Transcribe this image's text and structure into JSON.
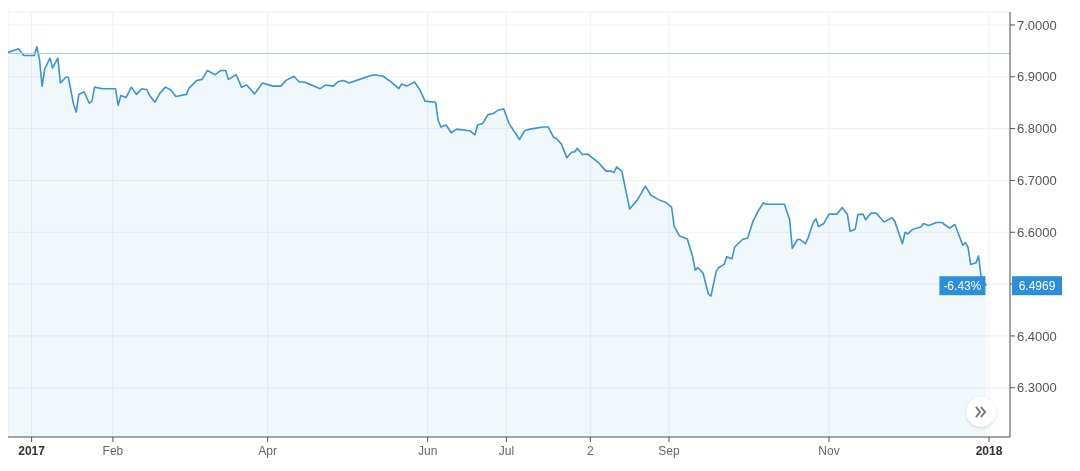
{
  "chart_data": {
    "type": "area",
    "color": "#3a95d4",
    "x": [
      "2016-12-23",
      "2016-12-27",
      "2016-12-29",
      "2017-01-02",
      "2017-01-03",
      "2017-01-04",
      "2017-01-05",
      "2017-01-06",
      "2017-01-08",
      "2017-01-09",
      "2017-01-11",
      "2017-01-12",
      "2017-01-14",
      "2017-01-15",
      "2017-01-17",
      "2017-01-18",
      "2017-01-19",
      "2017-01-21",
      "2017-01-23",
      "2017-01-24",
      "2017-01-25",
      "2017-01-28",
      "2017-02-02",
      "2017-02-03",
      "2017-02-04",
      "2017-02-06",
      "2017-02-08",
      "2017-02-10",
      "2017-02-12",
      "2017-02-14",
      "2017-02-15",
      "2017-02-17",
      "2017-02-19",
      "2017-02-21",
      "2017-02-23",
      "2017-02-25",
      "2017-03-01",
      "2017-03-02",
      "2017-03-05",
      "2017-03-07",
      "2017-03-09",
      "2017-03-12",
      "2017-03-14",
      "2017-03-16",
      "2017-03-17",
      "2017-03-20",
      "2017-03-22",
      "2017-03-24",
      "2017-03-27",
      "2017-03-30",
      "2017-04-03",
      "2017-04-06",
      "2017-04-08",
      "2017-04-11",
      "2017-04-13",
      "2017-04-15",
      "2017-04-21",
      "2017-04-23",
      "2017-04-26",
      "2017-04-28",
      "2017-04-30",
      "2017-05-02",
      "2017-05-06",
      "2017-05-10",
      "2017-05-12",
      "2017-05-15",
      "2017-05-18",
      "2017-05-21",
      "2017-05-22",
      "2017-05-24",
      "2017-05-27",
      "2017-05-29",
      "2017-05-31",
      "2017-06-04",
      "2017-06-05",
      "2017-06-06",
      "2017-06-08",
      "2017-06-10",
      "2017-06-12",
      "2017-06-17",
      "2017-06-19",
      "2017-06-20",
      "2017-06-22",
      "2017-06-24",
      "2017-06-26",
      "2017-06-28",
      "2017-06-30",
      "2017-07-02",
      "2017-07-06",
      "2017-07-08",
      "2017-07-10",
      "2017-07-15",
      "2017-07-17",
      "2017-07-19",
      "2017-07-20",
      "2017-07-22",
      "2017-07-24",
      "2017-07-26",
      "2017-07-27",
      "2017-07-28",
      "2017-07-30",
      "2017-08-01",
      "2017-08-05",
      "2017-08-08",
      "2017-08-10",
      "2017-08-11",
      "2017-08-12",
      "2017-08-14",
      "2017-08-17",
      "2017-08-20",
      "2017-08-23",
      "2017-08-25",
      "2017-08-28",
      "2017-08-31",
      "2017-09-02",
      "2017-09-03",
      "2017-09-05",
      "2017-09-08",
      "2017-09-10",
      "2017-09-11",
      "2017-09-12",
      "2017-09-14",
      "2017-09-16",
      "2017-09-17",
      "2017-09-19",
      "2017-09-20",
      "2017-09-22",
      "2017-09-23",
      "2017-09-25",
      "2017-09-26",
      "2017-09-29",
      "2017-10-01",
      "2017-10-03",
      "2017-10-05",
      "2017-10-07",
      "2017-10-08",
      "2017-10-15",
      "2017-10-17",
      "2017-10-18",
      "2017-10-20",
      "2017-10-21",
      "2017-10-23",
      "2017-10-24",
      "2017-10-26",
      "2017-10-27",
      "2017-10-28",
      "2017-10-30",
      "2017-11-01",
      "2017-11-02",
      "2017-11-04",
      "2017-11-06",
      "2017-11-08",
      "2017-11-09",
      "2017-11-11",
      "2017-11-12",
      "2017-11-14",
      "2017-11-15",
      "2017-11-17",
      "2017-11-19",
      "2017-11-22",
      "2017-11-25",
      "2017-11-26",
      "2017-11-29",
      "2017-11-30",
      "2017-12-01",
      "2017-12-03",
      "2017-12-06",
      "2017-12-07",
      "2017-12-09",
      "2017-12-12",
      "2017-12-14",
      "2017-12-15",
      "2017-12-17",
      "2017-12-19",
      "2017-12-22",
      "2017-12-23",
      "2017-12-24",
      "2017-12-25",
      "2017-12-27",
      "2017-12-28",
      "2017-12-29",
      "2017-12-31"
    ],
    "values": [
      6.947,
      6.954,
      6.941,
      6.941,
      6.958,
      6.934,
      6.882,
      6.915,
      6.936,
      6.917,
      6.936,
      6.888,
      6.899,
      6.899,
      6.847,
      6.832,
      6.866,
      6.871,
      6.849,
      6.853,
      6.88,
      6.877,
      6.877,
      6.845,
      6.864,
      6.86,
      6.88,
      6.866,
      6.877,
      6.875,
      6.864,
      6.851,
      6.869,
      6.88,
      6.875,
      6.862,
      6.866,
      6.878,
      6.893,
      6.895,
      6.912,
      6.904,
      6.912,
      6.912,
      6.895,
      6.904,
      6.88,
      6.884,
      6.867,
      6.888,
      6.882,
      6.882,
      6.893,
      6.901,
      6.89,
      6.89,
      6.877,
      6.884,
      6.882,
      6.891,
      6.893,
      6.888,
      6.895,
      6.902,
      6.904,
      6.901,
      6.89,
      6.877,
      6.886,
      6.882,
      6.89,
      6.875,
      6.853,
      6.851,
      6.816,
      6.803,
      6.807,
      6.792,
      6.799,
      6.796,
      6.788,
      6.807,
      6.81,
      6.827,
      6.829,
      6.836,
      6.838,
      6.81,
      6.779,
      6.796,
      6.799,
      6.803,
      6.803,
      6.783,
      6.781,
      6.77,
      6.744,
      6.755,
      6.755,
      6.762,
      6.75,
      6.751,
      6.735,
      6.718,
      6.718,
      6.715,
      6.726,
      6.718,
      6.645,
      6.663,
      6.689,
      6.672,
      6.663,
      6.657,
      6.648,
      6.611,
      6.593,
      6.587,
      6.553,
      6.527,
      6.532,
      6.521,
      6.481,
      6.477,
      6.525,
      6.532,
      6.538,
      6.553,
      6.549,
      6.571,
      6.586,
      6.589,
      6.621,
      6.641,
      6.657,
      6.654,
      6.654,
      6.624,
      6.569,
      6.586,
      6.586,
      6.578,
      6.589,
      6.619,
      6.626,
      6.611,
      6.617,
      6.635,
      6.635,
      6.635,
      6.648,
      6.635,
      6.602,
      6.606,
      6.634,
      6.635,
      6.624,
      6.637,
      6.637,
      6.62,
      6.628,
      6.622,
      6.578,
      6.6,
      6.597,
      6.606,
      6.61,
      6.617,
      6.613,
      6.619,
      6.619,
      6.615,
      6.608,
      6.615,
      6.575,
      6.58,
      6.571,
      6.538,
      6.541,
      6.554,
      6.514,
      6.4969
    ],
    "xlim": [
      "2016-12-23",
      "2018-01-09"
    ],
    "xticks": [
      {
        "value": "2017-01-01",
        "label": "2017"
      },
      {
        "value": "2017-02-01",
        "label": "Feb"
      },
      {
        "value": "2017-04-01",
        "label": "Apr"
      },
      {
        "value": "2017-06-01",
        "label": "Jun"
      },
      {
        "value": "2017-07-01",
        "label": "Jul"
      },
      {
        "value": "2017-08-02",
        "label": "2"
      },
      {
        "value": "2017-09-01",
        "label": "Sep"
      },
      {
        "value": "2017-11-01",
        "label": "Nov"
      },
      {
        "value": "2018-01-01",
        "label": "2018"
      }
    ],
    "ylim": [
      6.205,
      7.025
    ],
    "yticks": [
      {
        "value": 6.3,
        "label": "6.3000"
      },
      {
        "value": 6.4,
        "label": "6.4000"
      },
      {
        "value": 6.5,
        "label": null
      },
      {
        "value": 6.6,
        "label": "6.6000"
      },
      {
        "value": 6.7,
        "label": "6.7000"
      },
      {
        "value": 6.8,
        "label": "6.8000"
      },
      {
        "value": 6.9,
        "label": "6.9000"
      },
      {
        "value": 7.0,
        "label": "7.0000"
      }
    ],
    "ref_lines": [
      {
        "axis": "y",
        "value": 6.945,
        "color": "#a9cbe3"
      }
    ],
    "annotations": [
      {
        "text": "-6.43%",
        "x": "2017-12-31",
        "y": 6.4969
      },
      {
        "text": "6.4969",
        "x": "2017-12-31",
        "y": 6.4969
      }
    ],
    "grid": true,
    "legend": false,
    "marker": "none",
    "line_style": "solid"
  }
}
